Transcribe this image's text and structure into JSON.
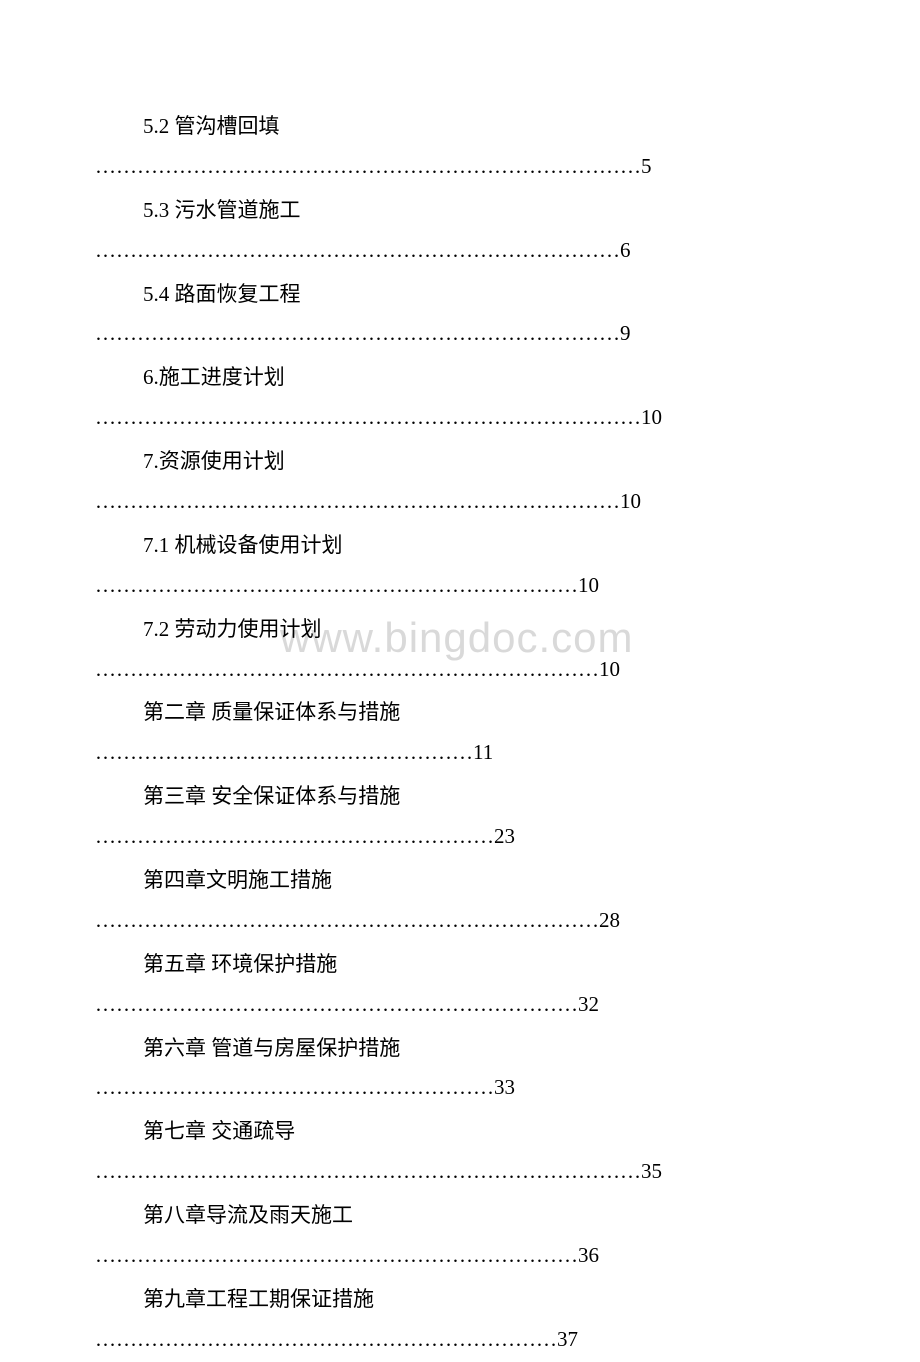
{
  "watermark_text": "www.bingdoc.com",
  "watermark_color": "#d9d9d9",
  "text_color": "#000000",
  "background_color": "#ffffff",
  "font_size": 21,
  "entries": [
    {
      "title": "5.2 管沟槽回填",
      "dots": "……………………………………………………………………5"
    },
    {
      "title": "5.3 污水管道施工",
      "dots": "…………………………………………………………………6"
    },
    {
      "title": "5.4 路面恢复工程",
      "dots": "…………………………………………………………………9"
    },
    {
      "title": "6.施工进度计划",
      "dots": "……………………………………………………………………10"
    },
    {
      "title": "7.资源使用计划",
      "dots": "…………………………………………………………………10"
    },
    {
      "title": "7.1 机械设备使用计划",
      "dots": "……………………………………………………………10"
    },
    {
      "title": "7.2 劳动力使用计划",
      "dots": "………………………………………………………………10"
    },
    {
      "title": "第二章 质量保证体系与措施",
      "dots": "………………………………………………11"
    },
    {
      "title": "第三章 安全保证体系与措施",
      "dots": "…………………………………………………23"
    },
    {
      "title": "第四章文明施工措施",
      "dots": "………………………………………………………………28"
    },
    {
      "title": "第五章 环境保护措施",
      "dots": "……………………………………………………………32"
    },
    {
      "title": "第六章 管道与房屋保护措施",
      "dots": "…………………………………………………33"
    },
    {
      "title": "第七章 交通疏导",
      "dots": "……………………………………………………………………35"
    },
    {
      "title": "第八章导流及雨天施工",
      "dots": "……………………………………………………………36"
    },
    {
      "title": "第九章工程工期保证措施",
      "dots": "…………………………………………………………37"
    }
  ]
}
